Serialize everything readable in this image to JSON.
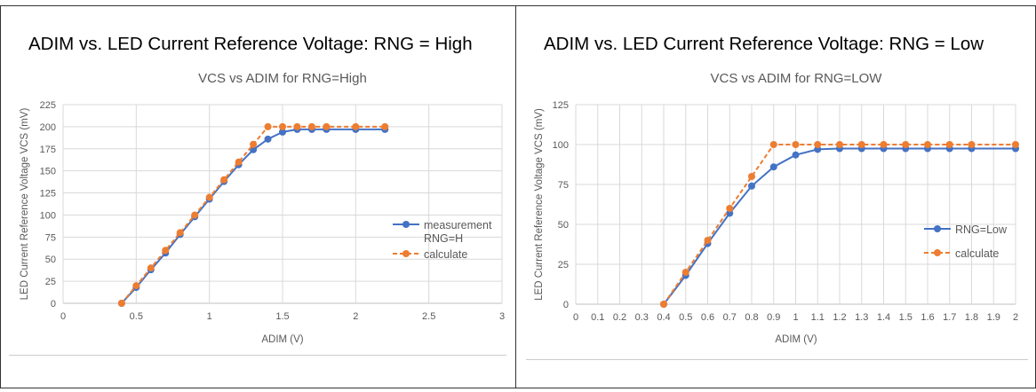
{
  "panels": [
    {
      "heading": "ADIM vs. LED Current Reference Voltage: RNG = High"
    },
    {
      "heading": "ADIM vs. LED Current Reference Voltage: RNG = Low"
    }
  ],
  "chart_data": [
    {
      "type": "line",
      "title": "VCS vs ADIM for RNG=High",
      "xlabel": "ADIM (V)",
      "ylabel": "LED Current Reference Voltage VCS (mV)",
      "xlim": [
        0,
        3
      ],
      "ylim": [
        0,
        225
      ],
      "xticks": [
        "0",
        "0.5",
        "1",
        "1.5",
        "2",
        "2.5",
        "3"
      ],
      "xtick_values": [
        0,
        0.5,
        1,
        1.5,
        2,
        2.5,
        3
      ],
      "yticks": [
        0,
        25,
        50,
        75,
        100,
        125,
        150,
        175,
        200,
        225
      ],
      "grid": true,
      "legend": "right",
      "series": [
        {
          "name": "measurement RNG=H",
          "legend_lines": [
            "measurement",
            "RNG=H"
          ],
          "color": "#4472C4",
          "dash": false,
          "x": [
            0.4,
            0.5,
            0.6,
            0.7,
            0.8,
            0.9,
            1.0,
            1.1,
            1.2,
            1.3,
            1.4,
            1.5,
            1.6,
            1.7,
            1.8,
            2.0,
            2.2
          ],
          "y": [
            0,
            18,
            38,
            57,
            78,
            98,
            118,
            138,
            157,
            174,
            186,
            194,
            197,
            197,
            197,
            197,
            197
          ]
        },
        {
          "name": "calculate",
          "legend_lines": [
            "calculate"
          ],
          "color": "#ED7D31",
          "dash": true,
          "x": [
            0.4,
            0.5,
            0.6,
            0.7,
            0.8,
            0.9,
            1.0,
            1.1,
            1.2,
            1.3,
            1.4,
            1.5,
            1.6,
            1.7,
            1.8,
            2.0,
            2.2
          ],
          "y": [
            0,
            20,
            40,
            60,
            80,
            100,
            120,
            140,
            160,
            180,
            200,
            200,
            200,
            200,
            200,
            200,
            200
          ]
        }
      ]
    },
    {
      "type": "line",
      "title": "VCS vs ADIM for RNG=LOW",
      "xlabel": "ADIM (V)",
      "ylabel": "LED Current Reference Voltage VCS (mV)",
      "xlim": [
        0,
        2
      ],
      "ylim": [
        0,
        125
      ],
      "xticks": [
        "0",
        "0.1",
        "0.2",
        "0.3",
        "0.4",
        "0.5",
        "0.6",
        "0.7",
        "0.8",
        "0.9",
        "1",
        "1.1",
        "1.2",
        "1.3",
        "1.4",
        "1.5",
        "1.6",
        "1.7",
        "1.8",
        "1.9",
        "2"
      ],
      "xtick_values": [
        0,
        0.1,
        0.2,
        0.3,
        0.4,
        0.5,
        0.6,
        0.7,
        0.8,
        0.9,
        1,
        1.1,
        1.2,
        1.3,
        1.4,
        1.5,
        1.6,
        1.7,
        1.8,
        1.9,
        2
      ],
      "yticks": [
        0,
        25,
        50,
        75,
        100,
        125
      ],
      "grid": true,
      "legend": "right",
      "series": [
        {
          "name": "RNG=Low",
          "legend_lines": [
            "RNG=Low"
          ],
          "color": "#4472C4",
          "dash": false,
          "x": [
            0.4,
            0.5,
            0.6,
            0.7,
            0.8,
            0.9,
            1.0,
            1.1,
            1.2,
            1.3,
            1.4,
            1.5,
            1.6,
            1.7,
            1.8,
            2.0
          ],
          "y": [
            0,
            18,
            38,
            57,
            74,
            86,
            93.5,
            97,
            97.5,
            97.5,
            97.5,
            97.5,
            97.5,
            97.5,
            97.5,
            97.5
          ]
        },
        {
          "name": "calculate",
          "legend_lines": [
            "calculate"
          ],
          "color": "#ED7D31",
          "dash": true,
          "x": [
            0.4,
            0.5,
            0.6,
            0.7,
            0.8,
            0.9,
            1.0,
            1.1,
            1.2,
            1.3,
            1.4,
            1.5,
            1.6,
            1.7,
            1.8,
            2.0
          ],
          "y": [
            0,
            20,
            40,
            60,
            80,
            100,
            100,
            100,
            100,
            100,
            100,
            100,
            100,
            100,
            100,
            100
          ]
        }
      ]
    }
  ]
}
